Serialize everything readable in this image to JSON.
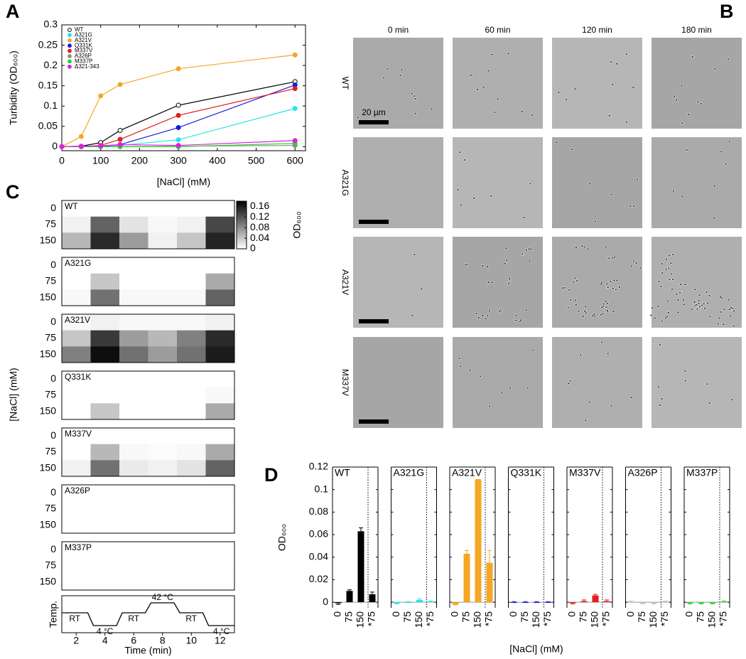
{
  "chart_data": [
    {
      "type": "line",
      "label": "A",
      "ylabel": "Turbidity (OD₆₀₀)",
      "xlabel": "[NaCl] (mM)",
      "x": [
        0,
        50,
        100,
        150,
        300,
        600
      ],
      "xlim": [
        0,
        627
      ],
      "xticks": [
        0,
        100,
        200,
        300,
        400,
        500,
        600
      ],
      "ylim": [
        -0.01,
        0.3
      ],
      "yticks": [
        0,
        0.05,
        0.1,
        0.15,
        0.2,
        0.25,
        0.3
      ],
      "series": [
        {
          "name": "WT",
          "color": "#000000",
          "open": true,
          "values": [
            0,
            0.001,
            0.01,
            0.04,
            0.102,
            0.16
          ]
        },
        {
          "name": "A321G",
          "color": "#22e5e5",
          "values": [
            0,
            0,
            0.002,
            0.003,
            0.017,
            0.094
          ]
        },
        {
          "name": "A321V",
          "color": "#f5a623",
          "values": [
            0,
            0.025,
            0.125,
            0.153,
            0.192,
            0.226
          ]
        },
        {
          "name": "Q331K",
          "color": "#1a1adb",
          "values": [
            0,
            0,
            0.001,
            0.005,
            0.047,
            0.152
          ]
        },
        {
          "name": "M337V",
          "color": "#e0201d",
          "values": [
            0,
            0,
            0.003,
            0.018,
            0.077,
            0.143
          ]
        },
        {
          "name": "A326P",
          "color": "#8c8c8c",
          "values": [
            0,
            0,
            0,
            0,
            0.001,
            0.003
          ]
        },
        {
          "name": "M337P",
          "color": "#22d62a",
          "values": [
            0,
            0,
            0,
            0,
            0,
            0.008
          ]
        },
        {
          "name": "Δ321-343",
          "color": "#e020e0",
          "values": [
            0,
            0.001,
            0.002,
            0.005,
            0.003,
            0.015
          ]
        }
      ]
    },
    {
      "type": "heatmap",
      "label": "C",
      "ylabel": "[NaCl] (mM)",
      "xlabel": "Time (min)",
      "xlim": [
        1,
        13
      ],
      "xticks": [
        2,
        4,
        6,
        8,
        10,
        12
      ],
      "rows": [
        "0",
        "75",
        "150"
      ],
      "zlim": [
        0,
        0.18
      ],
      "zticks": [
        0,
        0.04,
        0.08,
        0.12,
        0.16
      ],
      "colorbar_label": "OD₆₀₀",
      "panels": [
        {
          "name": "WT",
          "values": [
            [
              0,
              0,
              0,
              0,
              0,
              0
            ],
            [
              0.01,
              0.11,
              0.02,
              0.005,
              0.01,
              0.13
            ],
            [
              0.05,
              0.15,
              0.07,
              0.01,
              0.04,
              0.155
            ]
          ]
        },
        {
          "name": "A321G",
          "values": [
            [
              0,
              0,
              0,
              0,
              0,
              0
            ],
            [
              0,
              0.04,
              0,
              0,
              0,
              0.06
            ],
            [
              0.005,
              0.1,
              0.005,
              0.005,
              0.005,
              0.11
            ]
          ]
        },
        {
          "name": "A321V",
          "values": [
            [
              0.005,
              0.01,
              0.005,
              0.005,
              0.005,
              0.01
            ],
            [
              0.04,
              0.14,
              0.07,
              0.05,
              0.09,
              0.15
            ],
            [
              0.09,
              0.17,
              0.1,
              0.07,
              0.1,
              0.16
            ]
          ]
        },
        {
          "name": "Q331K",
          "values": [
            [
              0,
              0,
              0,
              0,
              0,
              0
            ],
            [
              0,
              0,
              0,
              0,
              0,
              0.005
            ],
            [
              0,
              0.04,
              0,
              0,
              0,
              0.06
            ]
          ]
        },
        {
          "name": "M337V",
          "values": [
            [
              0,
              0,
              0,
              0,
              0,
              0
            ],
            [
              0,
              0.05,
              0.005,
              0.003,
              0.005,
              0.06
            ],
            [
              0.01,
              0.1,
              0.015,
              0.01,
              0.02,
              0.11
            ]
          ]
        },
        {
          "name": "A326P",
          "values": [
            [
              0,
              0,
              0,
              0,
              0,
              0.001
            ],
            [
              0,
              0,
              0,
              0,
              0,
              0
            ],
            [
              0,
              0,
              0,
              0,
              0,
              0
            ]
          ]
        },
        {
          "name": "M337P",
          "values": [
            [
              0,
              0,
              0,
              0,
              0,
              0
            ],
            [
              0,
              0,
              0,
              0,
              0,
              0
            ],
            [
              0,
              0,
              0,
              0,
              0,
              0.001
            ]
          ]
        }
      ],
      "protocol": {
        "ylabel": "Temp.",
        "steps": [
          "RT",
          "4 °C",
          "RT",
          "42 °C",
          "RT",
          "4 °C"
        ]
      }
    },
    {
      "type": "bar",
      "label": "D",
      "ylabel": "OD₆₀₀",
      "xlabel": "[NaCl] (mM)",
      "categories": [
        "0",
        "75",
        "150",
        "*75"
      ],
      "ylim": [
        -0.005,
        0.12
      ],
      "yticks": [
        0,
        0.02,
        0.04,
        0.06,
        0.08,
        0.1,
        0.12
      ],
      "panels": [
        {
          "name": "WT",
          "color": "#000000",
          "values": [
            -0.001,
            0.01,
            0.063,
            0.007
          ],
          "errors": [
            0.001,
            0.001,
            0.003,
            0.002
          ]
        },
        {
          "name": "A321G",
          "color": "#22e5e5",
          "values": [
            -0.001,
            0,
            0.002,
            0.0005
          ],
          "errors": [
            0.0005,
            0.0005,
            0.001,
            0.0005
          ]
        },
        {
          "name": "A321V",
          "color": "#f5a623",
          "values": [
            -0.002,
            0.043,
            0.109,
            0.035
          ],
          "errors": [
            0.0005,
            0.003,
            0,
            0.011
          ]
        },
        {
          "name": "Q331K",
          "color": "#1a1adb",
          "values": [
            0,
            0,
            0,
            0
          ],
          "errors": [
            0.0005,
            0.0005,
            0.0005,
            0.0005
          ]
        },
        {
          "name": "M337V",
          "color": "#e0201d",
          "values": [
            -0.001,
            0.001,
            0.006,
            0.001
          ],
          "errors": [
            0.0005,
            0.001,
            0.001,
            0.001
          ]
        },
        {
          "name": "A326P",
          "color": "#bdbdbd",
          "values": [
            0.0005,
            -0.001,
            -0.001,
            0.0005
          ],
          "errors": [
            0.0005,
            0.0005,
            0.0005,
            0.0005
          ]
        },
        {
          "name": "M337P",
          "color": "#22d62a",
          "values": [
            -0.001,
            -0.001,
            -0.001,
            0.0005
          ],
          "errors": [
            0.0005,
            0.0005,
            0.0005,
            0.0005
          ]
        }
      ]
    }
  ],
  "micrographs": {
    "label": "B",
    "columns": [
      "0 min",
      "60 min",
      "120 min",
      "180 min"
    ],
    "rows": [
      "WT",
      "A321G",
      "A321V",
      "M337V"
    ],
    "scale_bar": "20 µm"
  }
}
